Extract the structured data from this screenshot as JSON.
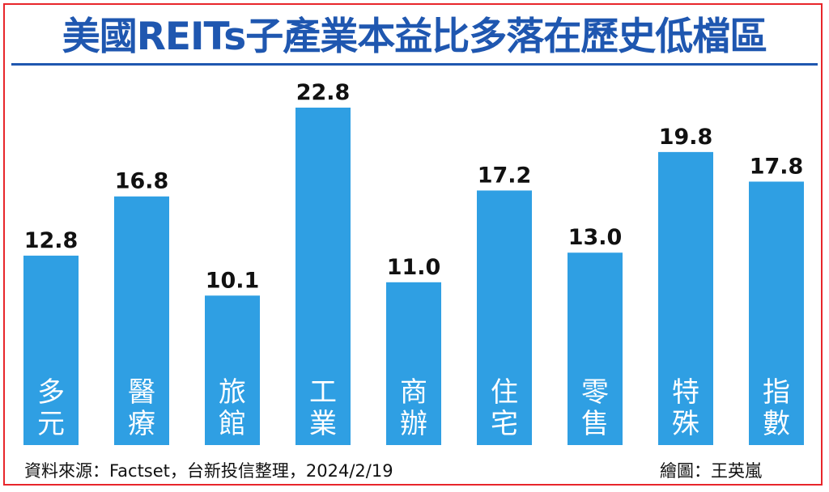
{
  "title": "美國REITs子產業本益比多落在歷史低檔區",
  "footer": {
    "source": "資料來源：Factset，台新投信整理，2024/2/19",
    "credit": "繪圖：王英嵐"
  },
  "colors": {
    "bar": "#2f9fe3",
    "title": "#1f57b0",
    "border": "#e8262b"
  },
  "chart_data": {
    "type": "bar",
    "title": "美國REITs子產業本益比多落在歷史低檔區",
    "categories": [
      "多元",
      "醫療",
      "旅館",
      "工業",
      "商辦",
      "住宅",
      "零售",
      "特殊",
      "指數"
    ],
    "values": [
      12.8,
      16.8,
      10.1,
      22.8,
      11.0,
      17.2,
      13.0,
      19.8,
      17.8
    ],
    "value_labels": [
      "12.8",
      "16.8",
      "10.1",
      "22.8",
      "11.0",
      "17.2",
      "13.0",
      "19.8",
      "17.8"
    ],
    "xlabel": "",
    "ylabel": "",
    "ylim": [
      0,
      22.8
    ],
    "grid": false,
    "legend": "none"
  }
}
